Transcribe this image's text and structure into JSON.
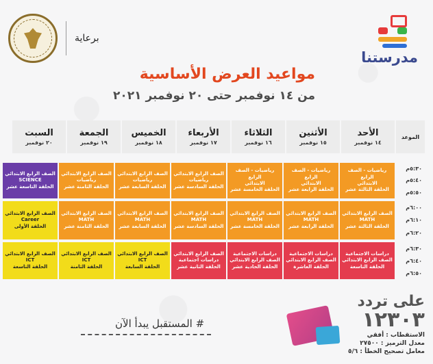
{
  "header": {
    "brand": "مدرستنا",
    "sponsor_label": "برعاية"
  },
  "title": "مواعيد العرض الأساسية",
  "subtitle": "من ١٤ نوفمبر حتى ٢٠ نوفمبر ٢٠٢١",
  "table": {
    "time_header": "الموعد",
    "days": [
      {
        "name": "الأحد",
        "date": "١٤ نوفمبر"
      },
      {
        "name": "الأثنين",
        "date": "١٥ نوفمبر"
      },
      {
        "name": "الثلاثاء",
        "date": "١٦ نوفمبر"
      },
      {
        "name": "الأربعاء",
        "date": "١٧ نوفمبر"
      },
      {
        "name": "الخميس",
        "date": "١٨ نوفمبر"
      },
      {
        "name": "الجمعة",
        "date": "١٩ نوفمبر"
      },
      {
        "name": "السبت",
        "date": "٢٠ نوفمبر"
      }
    ],
    "groups": [
      {
        "times": [
          "٥:٣٠م",
          "٥:٤٠م",
          "٥:٥٠م"
        ],
        "slots": [
          {
            "color": "orange",
            "lines": [
              "رياضيات - الصف الرابع",
              "الابتدائي",
              "الحلقة الثالثة عشر"
            ]
          },
          {
            "color": "orange",
            "lines": [
              "رياضيات - الصف الرابع",
              "الابتدائي",
              "الحلقة الرابعة عشر"
            ]
          },
          {
            "color": "orange",
            "lines": [
              "رياضيات - الصف الرابع",
              "الابتدائي",
              "الحلقة الخامسة عشر"
            ]
          },
          {
            "color": "orange",
            "lines": [
              "الصف الرابع الابتدائي",
              "رياضيات",
              "الحلقة السادسة عشر"
            ]
          },
          {
            "color": "orange",
            "lines": [
              "الصف الرابع الابتدائي",
              "رياضيات",
              "الحلقة السابعة عشر"
            ]
          },
          {
            "color": "orange",
            "lines": [
              "الصف الرابع الابتدائي",
              "رياضيات",
              "الحلقة الثامنة عشر"
            ]
          },
          {
            "color": "purple",
            "lines": [
              "الصف الرابع الابتدائي",
              "SCIENCE",
              "الحلقة التاسعة عشر"
            ]
          }
        ]
      },
      {
        "times": [
          "٦:٠٠م",
          "٦:١٠م",
          "٦:٢٠م"
        ],
        "slots": [
          {
            "color": "orange",
            "lines": [
              "الصف الرابع الابتدائي",
              "MATH",
              "الحلقة الثالثة عشر"
            ]
          },
          {
            "color": "orange",
            "lines": [
              "الصف الرابع الابتدائي",
              "MATH",
              "الحلقة الرابعة عشر"
            ]
          },
          {
            "color": "orange",
            "lines": [
              "الصف الرابع الابتدائي",
              "MATH",
              "الحلقة الخامسة عشر"
            ]
          },
          {
            "color": "orange",
            "lines": [
              "الصف الرابع الابتدائي",
              "MATH",
              "الحلقة السادسة عشر"
            ]
          },
          {
            "color": "orange",
            "lines": [
              "الصف الرابع الابتدائي",
              "MATH",
              "الحلقة السابعة عشر"
            ]
          },
          {
            "color": "orange",
            "lines": [
              "الصف الرابع الابتدائي",
              "MATH",
              "الحلقة الثامنة عشر"
            ]
          },
          {
            "color": "yellow",
            "lines": [
              "الصف الرابع الابتدائي",
              "Career",
              "الحلقة الأولى"
            ]
          }
        ]
      },
      {
        "times": [
          "٦:٣٠م",
          "٦:٤٠م",
          "٦:٥٠م"
        ],
        "slots": [
          {
            "color": "red",
            "lines": [
              "دراسات الاجتماعية",
              "الصف الرابع الابتدائي",
              "الحلقة التاسعة"
            ]
          },
          {
            "color": "red",
            "lines": [
              "دراسات الاجتماعية",
              "الصف الرابع الابتدائي",
              "الحلقة العاشرة"
            ]
          },
          {
            "color": "red",
            "lines": [
              "دراسات الاجتماعية",
              "الصف الرابع الابتدائي",
              "الحلقة الحادية عشر"
            ]
          },
          {
            "color": "red",
            "lines": [
              "الصف الرابع الابتدائي",
              "دراسات اجتماعية",
              "الحلقة الثانية عشر"
            ]
          },
          {
            "color": "yellow",
            "lines": [
              "الصف الرابع الابتدائي",
              "ICT",
              "الحلقة السابعة"
            ]
          },
          {
            "color": "yellow",
            "lines": [
              "الصف الرابع الابتدائي",
              "ICT",
              "الحلقة الثامنة"
            ]
          },
          {
            "color": "yellow",
            "lines": [
              "الصف الرابع الابتدائي",
              "ICT",
              "الحلقة التاسعة"
            ]
          }
        ]
      }
    ]
  },
  "footer": {
    "hashtag": "# المستقبل يبدأ الآن",
    "on_freq": "على تردد",
    "frequency": "١٢٣٠٣",
    "polarization": "الاستقطاب : أفقي",
    "symbol_rate": "معدل الترميز : ٢٧٥٠٠",
    "fec": "معامل تصحيح الخطأ : ٥/٦"
  }
}
